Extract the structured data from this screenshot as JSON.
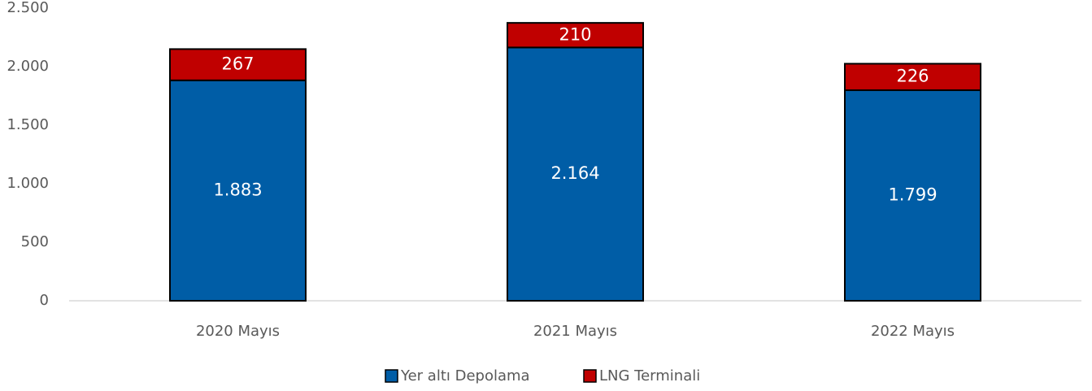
{
  "chart_data": {
    "type": "stacked_bar",
    "categories": [
      "2020 Mayıs",
      "2021 Mayıs",
      "2022 Mayıs"
    ],
    "series": [
      {
        "name": "Yer altı Depolama",
        "color": "#005da6",
        "values": [
          1883,
          2164,
          1799
        ],
        "value_labels": [
          "1.883",
          "2.164",
          "1.799"
        ]
      },
      {
        "name": "LNG Terminali",
        "color": "#c00000",
        "values": [
          267,
          210,
          226
        ]
      }
    ],
    "ylim": [
      0,
      2500
    ],
    "yticks": [
      0,
      500,
      {
        "value": 1000,
        "label": "1.000"
      },
      {
        "value": 1500,
        "label": "1.500"
      },
      {
        "value": 2000,
        "label": "2.000"
      },
      {
        "value": 2500,
        "label": "2.500"
      }
    ],
    "grid": false,
    "legend": "bottom"
  }
}
